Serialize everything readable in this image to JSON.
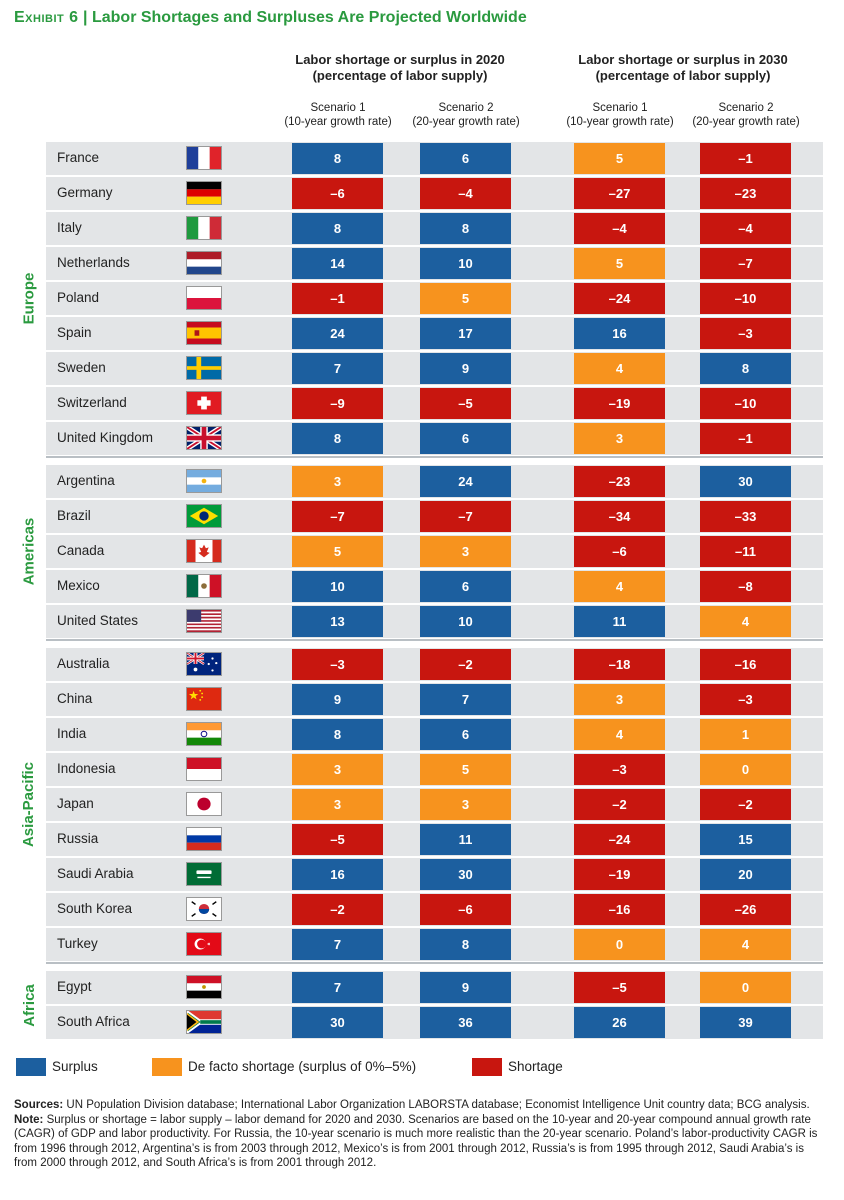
{
  "title": {
    "exhibit": "Exhibit 6",
    "separator": "|",
    "text": "Labor Shortages and Surpluses Are Projected Worldwide"
  },
  "headers": {
    "group_2020": "Labor shortage or surplus in 2020\n(percentage of labor supply)",
    "group_2030": "Labor shortage or surplus in 2030\n(percentage of labor supply)",
    "scenario1": "Scenario 1\n(10-year growth rate)",
    "scenario2": "Scenario 2\n(20-year growth rate)"
  },
  "colors": {
    "surplus": "#1c5f9f",
    "defacto": "#f7931e",
    "shortage": "#c8160f",
    "row_bg": "#e3e5e7",
    "accent": "#2a9a3f"
  },
  "legend": {
    "surplus": "Surplus",
    "defacto": "De facto shortage (surplus of 0%–5%)",
    "shortage": "Shortage"
  },
  "chart_data": {
    "type": "table",
    "columns": [
      "2020 Scenario 1",
      "2020 Scenario 2",
      "2030 Scenario 1",
      "2030 Scenario 2"
    ],
    "regions": [
      {
        "name": "Europe",
        "rows": [
          {
            "country": "France",
            "flag": "france-flag",
            "values": [
              8,
              6,
              5,
              -1
            ]
          },
          {
            "country": "Germany",
            "flag": "germany-flag",
            "values": [
              -6,
              -4,
              -27,
              -23
            ]
          },
          {
            "country": "Italy",
            "flag": "italy-flag",
            "values": [
              8,
              8,
              -4,
              -4
            ]
          },
          {
            "country": "Netherlands",
            "flag": "netherlands-flag",
            "values": [
              14,
              10,
              5,
              -7
            ]
          },
          {
            "country": "Poland",
            "flag": "poland-flag",
            "values": [
              -1,
              5,
              -24,
              -10
            ]
          },
          {
            "country": "Spain",
            "flag": "spain-flag",
            "values": [
              24,
              17,
              16,
              -3
            ]
          },
          {
            "country": "Sweden",
            "flag": "sweden-flag",
            "values": [
              7,
              9,
              4,
              8
            ]
          },
          {
            "country": "Switzerland",
            "flag": "switzerland-flag",
            "values": [
              -9,
              -5,
              -19,
              -10
            ]
          },
          {
            "country": "United Kingdom",
            "flag": "united-kingdom-flag",
            "values": [
              8,
              6,
              3,
              -1
            ]
          }
        ]
      },
      {
        "name": "Americas",
        "rows": [
          {
            "country": "Argentina",
            "flag": "argentina-flag",
            "values": [
              3,
              24,
              -23,
              30
            ]
          },
          {
            "country": "Brazil",
            "flag": "brazil-flag",
            "values": [
              -7,
              -7,
              -34,
              -33
            ]
          },
          {
            "country": "Canada",
            "flag": "canada-flag",
            "values": [
              5,
              3,
              -6,
              -11
            ]
          },
          {
            "country": "Mexico",
            "flag": "mexico-flag",
            "values": [
              10,
              6,
              4,
              -8
            ]
          },
          {
            "country": "United States",
            "flag": "united-states-flag",
            "values": [
              13,
              10,
              11,
              4
            ]
          }
        ]
      },
      {
        "name": "Asia-Pacific",
        "rows": [
          {
            "country": "Australia",
            "flag": "australia-flag",
            "values": [
              -3,
              -2,
              -18,
              -16
            ]
          },
          {
            "country": "China",
            "flag": "china-flag",
            "values": [
              9,
              7,
              3,
              -3
            ]
          },
          {
            "country": "India",
            "flag": "india-flag",
            "values": [
              8,
              6,
              4,
              1
            ]
          },
          {
            "country": "Indonesia",
            "flag": "indonesia-flag",
            "values": [
              3,
              5,
              -3,
              0
            ]
          },
          {
            "country": "Japan",
            "flag": "japan-flag",
            "values": [
              3,
              3,
              -2,
              -2
            ]
          },
          {
            "country": "Russia",
            "flag": "russia-flag",
            "values": [
              -5,
              11,
              -24,
              15
            ]
          },
          {
            "country": "Saudi Arabia",
            "flag": "saudi-arabia-flag",
            "values": [
              16,
              30,
              -19,
              20
            ]
          },
          {
            "country": "South Korea",
            "flag": "south-korea-flag",
            "values": [
              -2,
              -6,
              -16,
              -26
            ]
          },
          {
            "country": "Turkey",
            "flag": "turkey-flag",
            "values": [
              7,
              8,
              0,
              4
            ]
          }
        ]
      },
      {
        "name": "Africa",
        "rows": [
          {
            "country": "Egypt",
            "flag": "egypt-flag",
            "values": [
              7,
              9,
              -5,
              0
            ]
          },
          {
            "country": "South Africa",
            "flag": "south-africa-flag",
            "values": [
              30,
              36,
              26,
              39
            ]
          }
        ]
      }
    ]
  },
  "notes": {
    "sources_label": "Sources:",
    "sources_text": " UN Population Division database; International Labor Organization LABORSTA database; Economist Intelligence Unit country data; BCG analysis.",
    "note_label": "Note:",
    "note_text": " Surplus or shortage = labor supply – labor demand for 2020 and 2030. Scenarios are based on the 10-year and 20-year compound annual growth rate (CAGR) of GDP and labor productivity. For Russia, the 10-year scenario is much more realistic than the 20-year scenario. Poland’s labor-productivity CAGR is from 1996 through 2012, Argentina’s is from 2003 through 2012, Mexico’s is from 2001 through 2012, Russia’s is from 1995 through 2012, Saudi Arabia’s is from 2000 through 2012, and South Africa’s is from 2001 through 2012."
  }
}
